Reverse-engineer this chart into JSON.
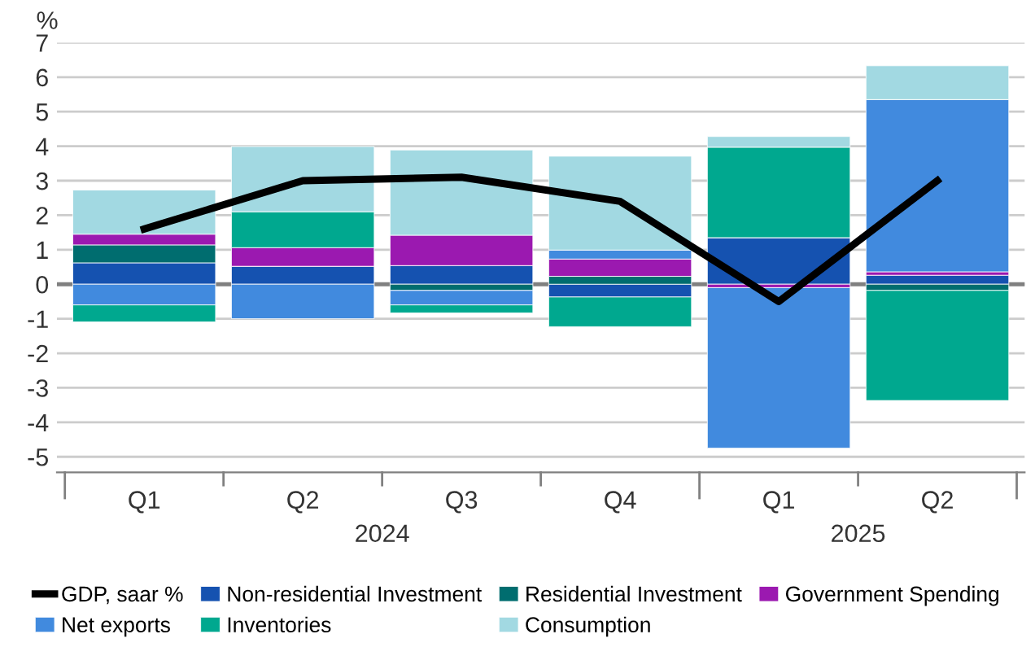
{
  "chart_data": {
    "type": "bar",
    "stacked": true,
    "ylabel": "%",
    "categories": [
      "Q1",
      "Q2",
      "Q3",
      "Q4",
      "Q1",
      "Q2"
    ],
    "series": [
      {
        "name": "GDP, saar %",
        "type": "line",
        "color": "#000000",
        "values": [
          1.6,
          3.0,
          3.1,
          2.4,
          -0.5,
          3.0
        ]
      },
      {
        "name": "Non-residential Investment",
        "color": "#1552b0",
        "values": [
          0.62,
          0.52,
          0.54,
          -0.37,
          1.35,
          0.26
        ]
      },
      {
        "name": "Residential Investment",
        "color": "#006d6f",
        "values": [
          0.52,
          0,
          -0.18,
          0.23,
          0,
          -0.18
        ]
      },
      {
        "name": "Government Spending",
        "color": "#9b19b0",
        "values": [
          0.31,
          0.54,
          0.88,
          0.5,
          -0.1,
          0.1
        ]
      },
      {
        "name": "Net exports",
        "color": "#418ade",
        "values": [
          -0.6,
          -1.0,
          -0.42,
          0.26,
          -4.65,
          4.99
        ]
      },
      {
        "name": "Inventories",
        "color": "#00a88f",
        "values": [
          -0.49,
          1.04,
          -0.23,
          -0.86,
          2.62,
          -3.19
        ]
      },
      {
        "name": "Consumption",
        "color": "#a2d9e2",
        "values": [
          1.28,
          1.89,
          2.47,
          2.72,
          0.31,
          0.98
        ]
      }
    ],
    "annotations": [
      "2024",
      "2025"
    ],
    "ylim": [
      -5.45,
      7
    ],
    "yticks": [
      -5,
      -4,
      -3,
      -2,
      -1,
      0,
      1,
      2,
      3,
      4,
      5,
      6,
      7
    ],
    "grid": "y",
    "legend": "bottom",
    "marker": "none",
    "line_style": "solid"
  }
}
